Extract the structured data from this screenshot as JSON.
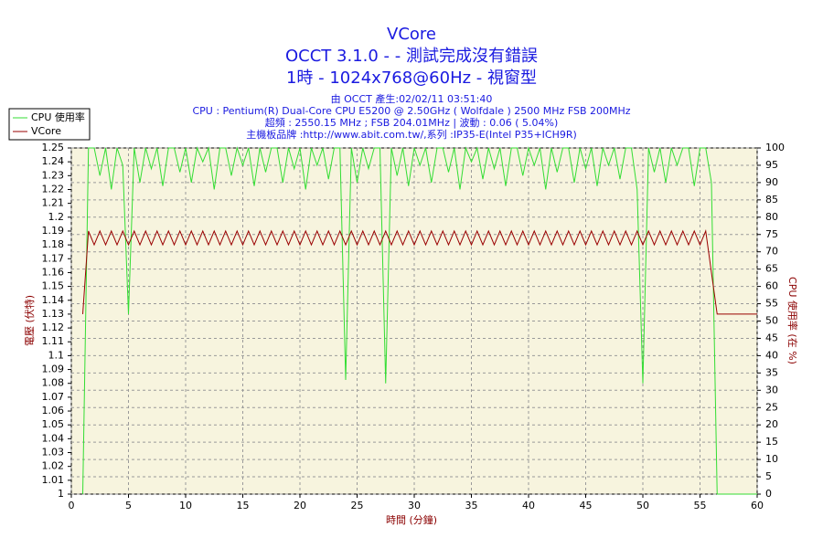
{
  "chart_data": {
    "type": "line",
    "title": "VCore",
    "subtitle": [
      "OCCT 3.1.0 -  - 測試完成沒有錯誤",
      "1時 - 1024x768@60Hz - 視窗型"
    ],
    "annotations": [
      "由 OCCT 產生:02/02/11 03:51:40",
      "CPU : Pentium(R) Dual-Core CPU E5200 @ 2.50GHz ( Wolfdale ) 2500 MHz FSB 200MHz",
      "超頻 : 2550.15 MHz ; FSB 204.01MHz | 波動 : 0.06 ( 5.04%)",
      "主機板品牌 :http://www.abit.com.tw/,系列 :IP35-E(Intel P35+ICH9R)"
    ],
    "xlabel": "時間 (分鐘)",
    "ylabel": "電壓 (伏特)",
    "y2label": "CPU 使用率 (在 %)",
    "xlim": [
      0,
      60
    ],
    "xticks": [
      0,
      5,
      10,
      15,
      20,
      25,
      30,
      35,
      40,
      45,
      50,
      55,
      60
    ],
    "ylim": [
      1,
      1.25
    ],
    "yticks": [
      1,
      1.01,
      1.02,
      1.03,
      1.04,
      1.05,
      1.06,
      1.07,
      1.08,
      1.09,
      1.1,
      1.11,
      1.12,
      1.13,
      1.14,
      1.15,
      1.16,
      1.17,
      1.18,
      1.19,
      1.2,
      1.21,
      1.22,
      1.23,
      1.24,
      1.25
    ],
    "y2lim": [
      0,
      100
    ],
    "y2ticks": [
      0,
      5,
      10,
      15,
      20,
      25,
      30,
      35,
      40,
      45,
      50,
      55,
      60,
      65,
      70,
      75,
      80,
      85,
      90,
      95,
      100
    ],
    "grid": true,
    "legend": "top-left",
    "x": [
      1,
      1.5,
      2,
      2.5,
      3,
      3.5,
      4,
      4.5,
      5,
      5.5,
      6,
      6.5,
      7,
      7.5,
      8,
      8.5,
      9,
      9.5,
      10,
      10.5,
      11,
      11.5,
      12,
      12.5,
      13,
      13.5,
      14,
      14.5,
      15,
      15.5,
      16,
      16.5,
      17,
      17.5,
      18,
      18.5,
      19,
      19.5,
      20,
      20.5,
      21,
      21.5,
      22,
      22.5,
      23,
      23.5,
      24,
      24.5,
      25,
      25.5,
      26,
      26.5,
      27,
      27.5,
      28,
      28.5,
      29,
      29.5,
      30,
      30.5,
      31,
      31.5,
      32,
      32.5,
      33,
      33.5,
      34,
      34.5,
      35,
      35.5,
      36,
      36.5,
      37,
      37.5,
      38,
      38.5,
      39,
      39.5,
      40,
      40.5,
      41,
      41.5,
      42,
      42.5,
      43,
      43.5,
      44,
      44.5,
      45,
      45.5,
      46,
      46.5,
      47,
      47.5,
      48,
      48.5,
      49,
      49.5,
      50,
      50.5,
      51,
      51.5,
      52,
      52.5,
      53,
      53.5,
      54,
      54.5,
      55,
      55.5,
      56,
      56.5,
      57,
      57.5,
      58,
      58.5,
      59,
      59.5,
      60
    ],
    "series": [
      {
        "name": "CPU 使用率",
        "color": "#33dd33",
        "axis": "y2",
        "values": [
          0,
          100,
          100,
          92,
          100,
          88,
          100,
          95,
          52,
          100,
          90,
          100,
          94,
          100,
          89,
          100,
          100,
          93,
          100,
          90,
          100,
          96,
          100,
          88,
          100,
          100,
          92,
          100,
          95,
          100,
          89,
          100,
          93,
          100,
          100,
          90,
          100,
          94,
          100,
          88,
          100,
          95,
          100,
          91,
          100,
          100,
          33,
          100,
          90,
          100,
          94,
          100,
          100,
          32,
          100,
          92,
          100,
          89,
          100,
          95,
          100,
          90,
          100,
          100,
          93,
          100,
          88,
          100,
          96,
          100,
          91,
          100,
          94,
          100,
          89,
          100,
          100,
          92,
          100,
          95,
          100,
          88,
          100,
          93,
          100,
          100,
          90,
          100,
          94,
          100,
          89,
          100,
          95,
          100,
          91,
          100,
          100,
          88,
          32,
          100,
          93,
          100,
          90,
          100,
          95,
          100,
          100,
          89,
          100,
          100,
          90,
          0,
          0,
          0,
          0,
          0,
          0,
          0,
          0
        ]
      },
      {
        "name": "VCore",
        "color": "#990000",
        "values": [
          1.13,
          1.19,
          1.18,
          1.19,
          1.18,
          1.19,
          1.18,
          1.19,
          1.18,
          1.19,
          1.18,
          1.19,
          1.18,
          1.19,
          1.18,
          1.19,
          1.18,
          1.19,
          1.18,
          1.19,
          1.18,
          1.19,
          1.18,
          1.19,
          1.18,
          1.19,
          1.18,
          1.19,
          1.18,
          1.19,
          1.18,
          1.19,
          1.18,
          1.19,
          1.18,
          1.19,
          1.18,
          1.19,
          1.18,
          1.19,
          1.18,
          1.19,
          1.18,
          1.19,
          1.18,
          1.19,
          1.18,
          1.19,
          1.18,
          1.19,
          1.18,
          1.19,
          1.18,
          1.19,
          1.18,
          1.19,
          1.18,
          1.19,
          1.18,
          1.19,
          1.18,
          1.19,
          1.18,
          1.19,
          1.18,
          1.19,
          1.18,
          1.19,
          1.18,
          1.19,
          1.18,
          1.19,
          1.18,
          1.19,
          1.18,
          1.19,
          1.18,
          1.19,
          1.18,
          1.19,
          1.18,
          1.19,
          1.18,
          1.19,
          1.18,
          1.19,
          1.18,
          1.19,
          1.18,
          1.19,
          1.18,
          1.19,
          1.18,
          1.19,
          1.18,
          1.19,
          1.18,
          1.19,
          1.18,
          1.19,
          1.18,
          1.19,
          1.18,
          1.19,
          1.18,
          1.19,
          1.18,
          1.19,
          1.18,
          1.19,
          1.16,
          1.13,
          1.13,
          1.13,
          1.13,
          1.13,
          1.13,
          1.13,
          1.13
        ]
      }
    ]
  }
}
